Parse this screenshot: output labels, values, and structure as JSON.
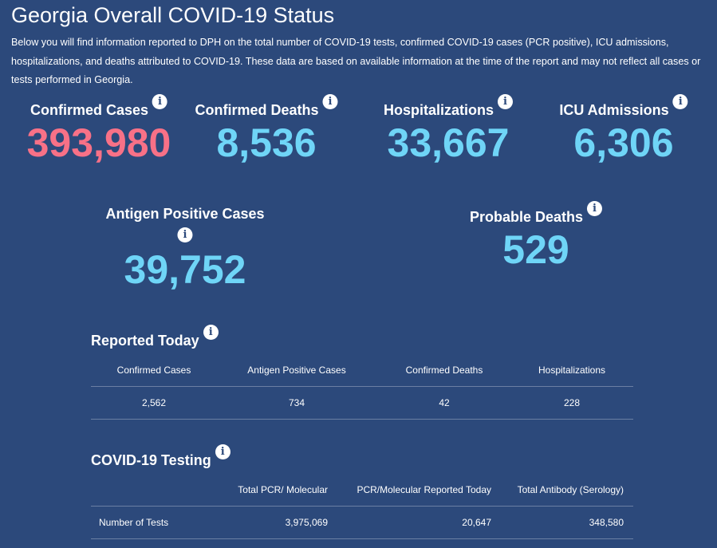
{
  "title": "Georgia Overall COVID-19 Status",
  "description": "Below you will find information reported to DPH on the total number of COVID-19 tests, confirmed COVID-19 cases (PCR positive), ICU admissions, hospitalizations, and deaths attributed to COVID-19. These data are based on available information at the time of the report and may not reflect all cases or tests performed in Georgia.",
  "colors": {
    "background": "#2c497b",
    "cases": "#f87187",
    "other": "#6fd5f7"
  },
  "info_icon": "i",
  "stats": [
    {
      "label": "Confirmed Cases",
      "value": "393,980"
    },
    {
      "label": "Confirmed Deaths",
      "value": "8,536"
    },
    {
      "label": "Hospitalizations",
      "value": "33,667"
    },
    {
      "label": "ICU Admissions",
      "value": "6,306"
    },
    {
      "label": "Antigen Positive Cases",
      "value": "39,752"
    },
    {
      "label": "Probable Deaths",
      "value": "529"
    }
  ],
  "reported_today": {
    "title": "Reported Today",
    "headers": [
      "Confirmed Cases",
      "Antigen Positive Cases",
      "Confirmed Deaths",
      "Hospitalizations"
    ],
    "values": [
      "2,562",
      "734",
      "42",
      "228"
    ]
  },
  "testing": {
    "title": "COVID-19 Testing",
    "headers": [
      "",
      "Total PCR/ Molecular",
      "PCR/Molecular Reported Today",
      "Total Antibody (Serology)"
    ],
    "rows": [
      [
        "Number of Tests",
        "3,975,069",
        "20,647",
        "348,580"
      ]
    ]
  }
}
